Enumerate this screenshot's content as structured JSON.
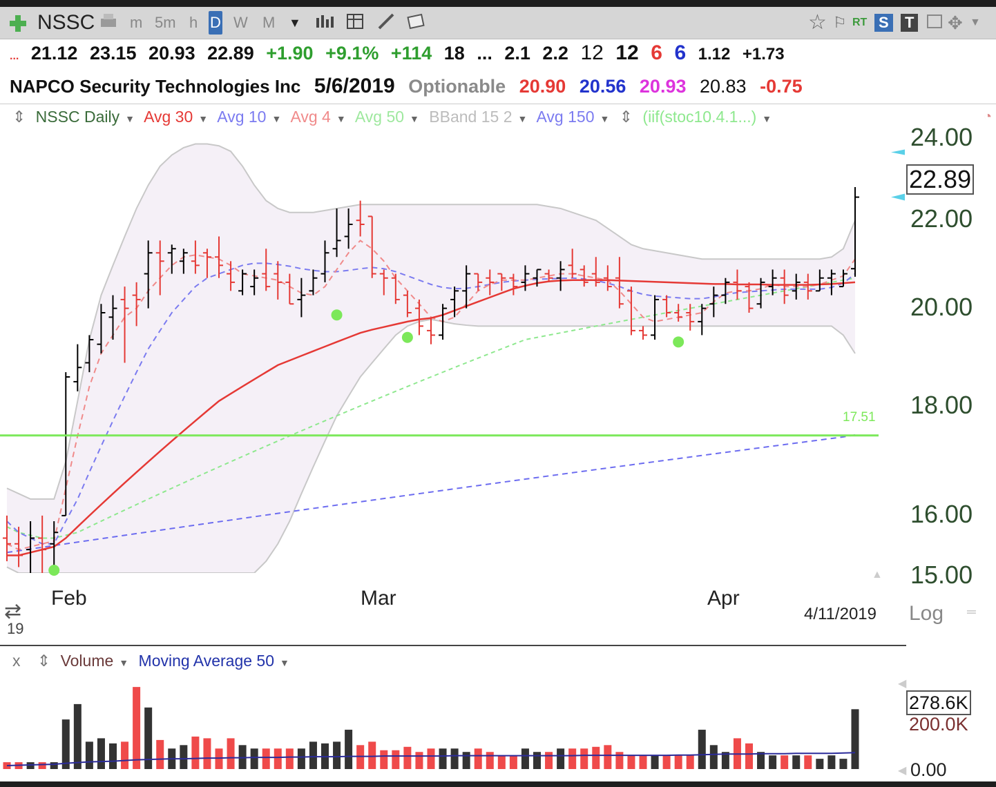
{
  "toolbar": {
    "symbol": "NSSC",
    "intervals": [
      "m",
      "5m",
      "h",
      "D",
      "W",
      "M"
    ],
    "active_interval": "D",
    "right_labels": [
      "RT",
      "S",
      "T"
    ]
  },
  "quote_row1": {
    "ellipsis": "...",
    "open": "21.12",
    "high": "23.15",
    "low": "20.93",
    "close": "22.89",
    "change": "+1.90",
    "change_pct": "+9.1%",
    "v1": "+114",
    "v2": "18",
    "dots": "...",
    "v3": "2.1",
    "v4": "2.2",
    "v5": "12",
    "v6": "12",
    "v7": "6",
    "v8": "6",
    "v9": "1.12",
    "v10": "+1.73"
  },
  "quote_row2": {
    "company": "NAPCO Security Technologies Inc",
    "date": "5/6/2019",
    "optionable": "Optionable",
    "p1": "20.90",
    "p2": "20.56",
    "p3": "20.93",
    "p4": "20.83",
    "p5": "-0.75"
  },
  "legend": {
    "series": "NSSC Daily",
    "avg30": "Avg 30",
    "avg10": "Avg 10",
    "avg4": "Avg 4",
    "avg50": "Avg 50",
    "bband": "BBand 15 2",
    "avg150": "Avg 150",
    "formula": "(iif(stoc10.4.1...)"
  },
  "colors": {
    "up_bar": "#000000",
    "down_bar": "#e53935",
    "avg30": "#e53935",
    "avg10": "#7b7bf0",
    "avg4": "#f08a8a",
    "avg50": "#8ee88e",
    "bband": "#c8c8c8",
    "avg150": "#6c6cf0",
    "signal_dot": "#7ce85a",
    "green_line": "#7ce85a"
  },
  "price_axis": {
    "ticks": [
      "24.00",
      "22.00",
      "20.00",
      "18.00",
      "16.00",
      "15.00"
    ],
    "current": "22.89",
    "scale": "Log"
  },
  "green_line_label": "17.51",
  "x_axis": {
    "months": [
      "Feb",
      "Mar",
      "Apr"
    ],
    "year_fragment": "19",
    "date_marker": "4/11/2019"
  },
  "volume_panel": {
    "close_label": "x",
    "series": "Volume",
    "ma": "Moving Average 50",
    "current": "278.6K",
    "tick_mid": "200.0K",
    "tick_zero": "0.00"
  },
  "chart_data": {
    "type": "ohlc",
    "title": "",
    "ylim": [
      15.0,
      24.5
    ],
    "y_scale": "log",
    "bars": [
      {
        "o": 15.6,
        "h": 16.0,
        "l": 15.2,
        "c": 15.5
      },
      {
        "o": 15.5,
        "h": 15.8,
        "l": 15.1,
        "c": 15.3
      },
      {
        "o": 15.4,
        "h": 15.9,
        "l": 15.0,
        "c": 15.6
      },
      {
        "o": 15.6,
        "h": 16.0,
        "l": 15.0,
        "c": 15.4
      },
      {
        "o": 15.5,
        "h": 15.9,
        "l": 15.1,
        "c": 15.7
      },
      {
        "o": 16.0,
        "h": 18.8,
        "l": 16.0,
        "c": 18.7
      },
      {
        "o": 18.6,
        "h": 19.4,
        "l": 18.4,
        "c": 18.9
      },
      {
        "o": 19.0,
        "h": 19.6,
        "l": 18.8,
        "c": 19.5
      },
      {
        "o": 19.4,
        "h": 20.3,
        "l": 19.2,
        "c": 20.1
      },
      {
        "o": 20.0,
        "h": 20.5,
        "l": 19.5,
        "c": 20.2
      },
      {
        "o": 20.4,
        "h": 20.7,
        "l": 19.0,
        "c": 20.2
      },
      {
        "o": 20.5,
        "h": 20.8,
        "l": 19.8,
        "c": 20.4
      },
      {
        "o": 21.0,
        "h": 21.8,
        "l": 20.2,
        "c": 21.5
      },
      {
        "o": 21.5,
        "h": 21.8,
        "l": 20.5,
        "c": 21.3
      },
      {
        "o": 21.5,
        "h": 21.7,
        "l": 21.0,
        "c": 21.6
      },
      {
        "o": 21.3,
        "h": 21.6,
        "l": 21.0,
        "c": 21.5
      },
      {
        "o": 21.3,
        "h": 21.8,
        "l": 21.0,
        "c": 21.2
      },
      {
        "o": 21.5,
        "h": 21.6,
        "l": 20.9,
        "c": 21.4
      },
      {
        "o": 21.4,
        "h": 21.9,
        "l": 20.9,
        "c": 21.2
      },
      {
        "o": 21.0,
        "h": 21.3,
        "l": 20.6,
        "c": 20.8
      },
      {
        "o": 20.6,
        "h": 21.1,
        "l": 20.5,
        "c": 21.0
      },
      {
        "o": 20.7,
        "h": 21.1,
        "l": 20.5,
        "c": 20.9
      },
      {
        "o": 21.0,
        "h": 21.6,
        "l": 20.6,
        "c": 20.7
      },
      {
        "o": 21.0,
        "h": 21.3,
        "l": 20.4,
        "c": 20.8
      },
      {
        "o": 20.8,
        "h": 21.0,
        "l": 20.3,
        "c": 20.3
      },
      {
        "o": 20.4,
        "h": 20.9,
        "l": 20.0,
        "c": 20.5
      },
      {
        "o": 20.6,
        "h": 21.1,
        "l": 20.5,
        "c": 20.9
      },
      {
        "o": 21.0,
        "h": 21.8,
        "l": 20.8,
        "c": 21.5
      },
      {
        "o": 21.6,
        "h": 22.6,
        "l": 21.4,
        "c": 21.8
      },
      {
        "o": 21.9,
        "h": 22.6,
        "l": 21.6,
        "c": 22.2
      },
      {
        "o": 22.3,
        "h": 22.8,
        "l": 21.9,
        "c": 22.2
      },
      {
        "o": 22.4,
        "h": 22.4,
        "l": 20.9,
        "c": 21.0
      },
      {
        "o": 21.0,
        "h": 21.1,
        "l": 20.5,
        "c": 20.9
      },
      {
        "o": 20.9,
        "h": 21.0,
        "l": 20.3,
        "c": 20.4
      },
      {
        "o": 20.5,
        "h": 20.6,
        "l": 20.0,
        "c": 20.1
      },
      {
        "o": 20.2,
        "h": 20.4,
        "l": 19.6,
        "c": 19.8
      },
      {
        "o": 19.7,
        "h": 20.0,
        "l": 19.4,
        "c": 19.6
      },
      {
        "o": 19.6,
        "h": 20.3,
        "l": 19.5,
        "c": 20.2
      },
      {
        "o": 20.4,
        "h": 20.7,
        "l": 20.0,
        "c": 20.6
      },
      {
        "o": 20.6,
        "h": 21.2,
        "l": 20.2,
        "c": 21.0
      },
      {
        "o": 21.0,
        "h": 21.0,
        "l": 20.6,
        "c": 20.8
      },
      {
        "o": 20.9,
        "h": 21.1,
        "l": 20.5,
        "c": 20.8
      },
      {
        "o": 21.0,
        "h": 21.0,
        "l": 20.6,
        "c": 20.9
      },
      {
        "o": 20.9,
        "h": 21.0,
        "l": 20.5,
        "c": 20.7
      },
      {
        "o": 20.8,
        "h": 21.2,
        "l": 20.6,
        "c": 21.0
      },
      {
        "o": 20.9,
        "h": 21.1,
        "l": 20.7,
        "c": 21.1
      },
      {
        "o": 21.0,
        "h": 21.1,
        "l": 20.8,
        "c": 20.9
      },
      {
        "o": 20.9,
        "h": 21.3,
        "l": 20.6,
        "c": 21.1
      },
      {
        "o": 21.2,
        "h": 21.6,
        "l": 20.9,
        "c": 21.0
      },
      {
        "o": 21.1,
        "h": 21.2,
        "l": 20.7,
        "c": 20.8
      },
      {
        "o": 21.0,
        "h": 21.4,
        "l": 20.7,
        "c": 20.8
      },
      {
        "o": 20.9,
        "h": 21.2,
        "l": 20.6,
        "c": 20.7
      },
      {
        "o": 20.9,
        "h": 21.4,
        "l": 20.2,
        "c": 20.3
      },
      {
        "o": 20.6,
        "h": 20.7,
        "l": 19.6,
        "c": 19.7
      },
      {
        "o": 19.7,
        "h": 19.8,
        "l": 19.5,
        "c": 19.6
      },
      {
        "o": 19.6,
        "h": 20.5,
        "l": 19.5,
        "c": 20.4
      },
      {
        "o": 20.4,
        "h": 20.5,
        "l": 20.0,
        "c": 20.1
      },
      {
        "o": 20.1,
        "h": 20.3,
        "l": 19.9,
        "c": 20.0
      },
      {
        "o": 20.1,
        "h": 20.3,
        "l": 19.7,
        "c": 19.9
      },
      {
        "o": 19.9,
        "h": 20.3,
        "l": 19.6,
        "c": 20.2
      },
      {
        "o": 20.3,
        "h": 20.7,
        "l": 20.0,
        "c": 20.5
      },
      {
        "o": 20.5,
        "h": 20.9,
        "l": 20.3,
        "c": 20.8
      },
      {
        "o": 20.8,
        "h": 21.1,
        "l": 20.4,
        "c": 20.6
      },
      {
        "o": 20.7,
        "h": 20.8,
        "l": 20.1,
        "c": 20.2
      },
      {
        "o": 20.3,
        "h": 20.9,
        "l": 20.2,
        "c": 20.8
      },
      {
        "o": 20.7,
        "h": 21.1,
        "l": 20.5,
        "c": 20.9
      },
      {
        "o": 20.9,
        "h": 21.1,
        "l": 20.3,
        "c": 20.5
      },
      {
        "o": 20.6,
        "h": 21.0,
        "l": 20.4,
        "c": 20.8
      },
      {
        "o": 20.8,
        "h": 21.0,
        "l": 20.4,
        "c": 20.6
      },
      {
        "o": 20.6,
        "h": 21.1,
        "l": 20.6,
        "c": 20.9
      },
      {
        "o": 20.9,
        "h": 21.1,
        "l": 20.5,
        "c": 21.0
      },
      {
        "o": 20.7,
        "h": 21.1,
        "l": 20.7,
        "c": 21.0
      },
      {
        "o": 21.12,
        "h": 23.15,
        "l": 20.93,
        "c": 22.89
      }
    ],
    "avg30": [
      15.3,
      15.3,
      15.35,
      15.4,
      15.45,
      15.6,
      15.8,
      16.0,
      16.2,
      16.4,
      16.6,
      16.8,
      17.0,
      17.2,
      17.4,
      17.6,
      17.8,
      18.0,
      18.2,
      18.35,
      18.5,
      18.65,
      18.8,
      18.95,
      19.05,
      19.15,
      19.25,
      19.35,
      19.45,
      19.55,
      19.65,
      19.72,
      19.78,
      19.84,
      19.9,
      19.95,
      19.98,
      20.05,
      20.15,
      20.25,
      20.35,
      20.45,
      20.55,
      20.65,
      20.72,
      20.78,
      20.82,
      20.84,
      20.85,
      20.85,
      20.85,
      20.85,
      20.84,
      20.83,
      20.82,
      20.81,
      20.8,
      20.79,
      20.78,
      20.77,
      20.76,
      20.76,
      20.75,
      20.75,
      20.75,
      20.74,
      20.74,
      20.74,
      20.74,
      20.75,
      20.76,
      20.78,
      20.8
    ],
    "avg10": [
      15.9,
      15.7,
      15.6,
      15.5,
      15.5,
      15.9,
      16.3,
      16.8,
      17.3,
      17.8,
      18.3,
      18.8,
      19.3,
      19.7,
      20.1,
      20.4,
      20.7,
      20.9,
      21.0,
      21.1,
      21.2,
      21.25,
      21.25,
      21.22,
      21.18,
      21.12,
      21.08,
      21.05,
      21.05,
      21.08,
      21.12,
      21.15,
      21.12,
      21.05,
      20.95,
      20.85,
      20.75,
      20.68,
      20.65,
      20.66,
      20.7,
      20.75,
      20.8,
      20.83,
      20.85,
      20.87,
      20.88,
      20.89,
      20.9,
      20.88,
      20.84,
      20.78,
      20.7,
      20.6,
      20.52,
      20.48,
      20.46,
      20.44,
      20.42,
      20.42,
      20.46,
      20.52,
      20.56,
      20.58,
      20.6,
      20.62,
      20.64,
      20.64,
      20.64,
      20.64,
      20.68,
      20.78,
      21.0
    ],
    "avg4": [
      15.5,
      15.4,
      15.45,
      15.5,
      15.55,
      16.5,
      17.5,
      18.5,
      19.2,
      19.6,
      20.0,
      20.2,
      20.6,
      20.9,
      21.2,
      21.4,
      21.45,
      21.4,
      21.35,
      21.2,
      21.0,
      20.95,
      20.9,
      20.85,
      20.7,
      20.55,
      20.5,
      20.7,
      21.1,
      21.5,
      21.8,
      21.6,
      21.3,
      20.9,
      20.6,
      20.3,
      20.0,
      19.9,
      20.0,
      20.3,
      20.6,
      20.75,
      20.85,
      20.85,
      20.85,
      20.9,
      20.95,
      21.0,
      21.0,
      20.95,
      20.9,
      20.85,
      20.6,
      20.3,
      20.0,
      19.9,
      19.95,
      20.0,
      20.05,
      20.1,
      20.35,
      20.55,
      20.6,
      20.6,
      20.65,
      20.75,
      20.7,
      20.7,
      20.7,
      20.75,
      20.85,
      20.95,
      21.35
    ],
    "avg50": [
      15.8,
      15.7,
      15.65,
      15.6,
      15.6,
      15.65,
      15.7,
      15.8,
      15.9,
      16.0,
      16.1,
      16.2,
      16.3,
      16.4,
      16.5,
      16.6,
      16.7,
      16.8,
      16.9,
      17.0,
      17.1,
      17.2,
      17.3,
      17.4,
      17.5,
      17.6,
      17.7,
      17.8,
      17.9,
      18.0,
      18.1,
      18.2,
      18.3,
      18.4,
      18.5,
      18.6,
      18.7,
      18.8,
      18.9,
      19.0,
      19.1,
      19.2,
      19.3,
      19.4,
      19.5,
      19.55,
      19.6,
      19.65,
      19.7,
      19.75,
      19.8,
      19.85,
      19.9,
      19.95,
      20.0,
      20.05,
      20.1,
      20.15,
      20.2,
      20.25,
      20.3,
      20.35,
      20.4,
      20.45,
      20.5,
      20.55,
      20.6,
      20.65,
      20.7,
      20.75,
      20.8,
      20.85,
      20.9
    ],
    "avg150": [
      15.35,
      15.38,
      15.41,
      15.44,
      15.47,
      15.5,
      15.53,
      15.56,
      15.59,
      15.62,
      15.65,
      15.68,
      15.71,
      15.74,
      15.77,
      15.8,
      15.83,
      15.86,
      15.89,
      15.92,
      15.95,
      15.98,
      16.01,
      16.04,
      16.07,
      16.1,
      16.13,
      16.16,
      16.19,
      16.22,
      16.25,
      16.28,
      16.31,
      16.34,
      16.37,
      16.4,
      16.43,
      16.46,
      16.49,
      16.52,
      16.55,
      16.58,
      16.61,
      16.64,
      16.67,
      16.7,
      16.73,
      16.76,
      16.79,
      16.82,
      16.85,
      16.88,
      16.91,
      16.94,
      16.97,
      17.0,
      17.03,
      17.06,
      17.09,
      17.12,
      17.15,
      17.18,
      17.21,
      17.24,
      17.27,
      17.3,
      17.33,
      17.36,
      17.39,
      17.42,
      17.45,
      17.48,
      17.52
    ],
    "bband_upper": [
      16.5,
      16.4,
      16.3,
      16.3,
      16.3,
      17.0,
      18.2,
      19.5,
      20.5,
      21.2,
      21.9,
      22.6,
      23.2,
      23.7,
      24.0,
      24.2,
      24.3,
      24.3,
      24.25,
      24.1,
      23.7,
      23.2,
      22.8,
      22.6,
      22.5,
      22.5,
      22.5,
      22.55,
      22.6,
      22.65,
      22.7,
      22.7,
      22.7,
      22.7,
      22.7,
      22.7,
      22.7,
      22.7,
      22.7,
      22.7,
      22.7,
      22.7,
      22.7,
      22.7,
      22.7,
      22.7,
      22.65,
      22.6,
      22.5,
      22.4,
      22.3,
      22.1,
      21.9,
      21.7,
      21.6,
      21.55,
      21.5,
      21.45,
      21.4,
      21.35,
      21.35,
      21.35,
      21.35,
      21.35,
      21.35,
      21.35,
      21.35,
      21.35,
      21.35,
      21.35,
      21.4,
      21.6,
      22.3
    ],
    "bband_lower": [
      15.1,
      15.0,
      15.0,
      15.0,
      15.0,
      15.0,
      15.0,
      15.0,
      15.0,
      15.0,
      15.0,
      15.0,
      15.0,
      15.0,
      15.0,
      15.0,
      15.0,
      15.0,
      15.0,
      15.0,
      15.0,
      15.0,
      15.2,
      15.5,
      15.9,
      16.4,
      16.9,
      17.4,
      17.9,
      18.3,
      18.7,
      19.0,
      19.3,
      19.6,
      19.8,
      19.9,
      19.95,
      19.9,
      19.85,
      19.82,
      19.8,
      19.8,
      19.8,
      19.8,
      19.8,
      19.8,
      19.8,
      19.8,
      19.8,
      19.8,
      19.8,
      19.8,
      19.8,
      19.8,
      19.8,
      19.8,
      19.8,
      19.8,
      19.8,
      19.8,
      19.8,
      19.8,
      19.8,
      19.8,
      19.8,
      19.8,
      19.8,
      19.8,
      19.8,
      19.8,
      19.8,
      19.6,
      19.2
    ],
    "signal_dots": [
      {
        "i": 4,
        "y": 15.0
      },
      {
        "i": 28,
        "y": 20.05
      },
      {
        "i": 34,
        "y": 19.55
      },
      {
        "i": 57,
        "y": 19.45
      }
    ],
    "horizontal_line": 17.51,
    "volume": [
      20,
      20,
      20,
      20,
      20,
      145,
      190,
      80,
      90,
      75,
      80,
      240,
      180,
      85,
      60,
      70,
      95,
      90,
      60,
      90,
      70,
      60,
      60,
      60,
      60,
      60,
      80,
      75,
      80,
      115,
      70,
      80,
      55,
      55,
      65,
      50,
      60,
      60,
      60,
      50,
      60,
      50,
      40,
      40,
      60,
      50,
      50,
      60,
      60,
      60,
      65,
      70,
      50,
      40,
      40,
      40,
      40,
      40,
      40,
      115,
      70,
      50,
      90,
      75,
      50,
      40,
      40,
      40,
      40,
      30,
      40,
      30,
      175
    ],
    "volume_ma": [
      10,
      11,
      12,
      13,
      14,
      17,
      19,
      21,
      22,
      23,
      25,
      27,
      28,
      29,
      30,
      30,
      31,
      32,
      32,
      33,
      33,
      34,
      34,
      34,
      35,
      35,
      36,
      36,
      36,
      37,
      37,
      37,
      38,
      38,
      38,
      38,
      38,
      38,
      39,
      39,
      39,
      39,
      39,
      39,
      39,
      39,
      39,
      39,
      39,
      40,
      40,
      40,
      40,
      40,
      40,
      40,
      40,
      41,
      41,
      42,
      43,
      44,
      44,
      44,
      45,
      45,
      45,
      46,
      46,
      46,
      46,
      47,
      48
    ],
    "volume_ylim": [
      0,
      278.6
    ]
  }
}
